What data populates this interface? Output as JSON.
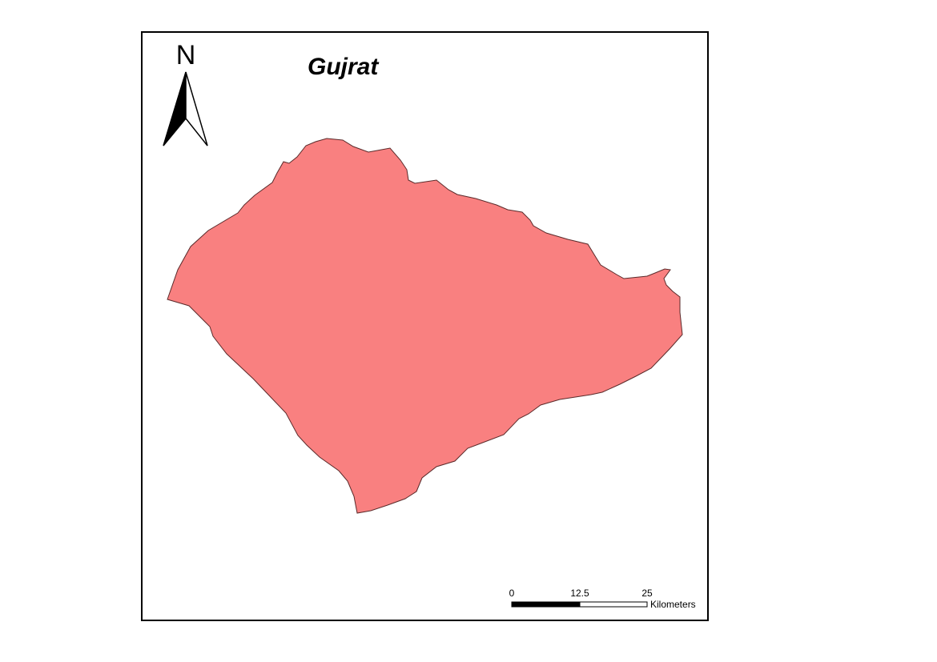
{
  "map": {
    "title": "Gujrat",
    "region_name": "Gujrat",
    "region_fill": "#f98080",
    "region_stroke": "#5a2a2a",
    "frame_color": "#000000"
  },
  "north_arrow": {
    "label": "N"
  },
  "scale_bar": {
    "tick_labels": [
      "0",
      "12.5",
      "25"
    ],
    "unit": "Kilometers"
  }
}
